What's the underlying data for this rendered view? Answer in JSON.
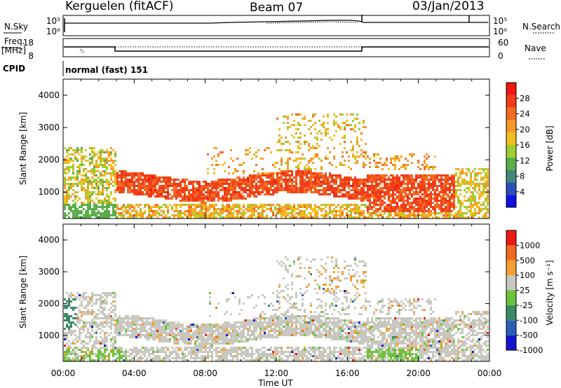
{
  "header": {
    "station": "Kerguelen (fitACF)",
    "beam": "Beam 07",
    "date": "03/Jan/2013"
  },
  "panels": {
    "noise": {
      "left_label": "N.Sky",
      "right_label": "N.Search",
      "left_ticks": [
        "10^5",
        "10^0"
      ],
      "right_ticks": [
        "10^5",
        "10^0"
      ]
    },
    "freq": {
      "left_label_1": "Freq.",
      "left_label_2": "[MHz]",
      "right_label": "Nave",
      "left_ticks": [
        "18",
        "8"
      ],
      "right_ticks": [
        "60",
        "0"
      ]
    },
    "cpid": {
      "label": "CPID",
      "value": "normal (fast) 151"
    }
  },
  "chart_data": [
    {
      "type": "heatmap",
      "title": "",
      "ylabel": "Slant Range [km]",
      "xlabel": "",
      "ylim": [
        180,
        4500
      ],
      "y_ticks": [
        "1000",
        "2000",
        "3000",
        "4000"
      ],
      "colorbar": {
        "label": "Power [dB]",
        "ticks": [
          "4",
          "8",
          "12",
          "16",
          "20",
          "24",
          "28"
        ],
        "colors": [
          "#1010e0",
          "#2a50b8",
          "#40887a",
          "#5aae4a",
          "#9ccf2e",
          "#f0c020",
          "#f49a2a",
          "#f46a22",
          "#f03c18",
          "#ee1610"
        ]
      }
    },
    {
      "type": "heatmap",
      "title": "",
      "ylabel": "Slant Range [km]",
      "xlabel": "Time UT",
      "ylim": [
        180,
        4500
      ],
      "y_ticks": [
        "1000",
        "2000",
        "3000",
        "4000"
      ],
      "x_ticks": [
        "00:00",
        "04:00",
        "08:00",
        "12:00",
        "16:00",
        "20:00",
        "00:00"
      ],
      "colorbar": {
        "label": "Velocity [m s^-1]",
        "ticks": [
          "1000",
          "500",
          "100",
          "25",
          "-25",
          "-100",
          "-500",
          "-1000"
        ],
        "colors": [
          "#1414d0",
          "#2a60b4",
          "#3c8a66",
          "#6cc23a",
          "#c8c8c0",
          "#f4a030",
          "#f06a20",
          "#ee1a12"
        ]
      }
    }
  ]
}
